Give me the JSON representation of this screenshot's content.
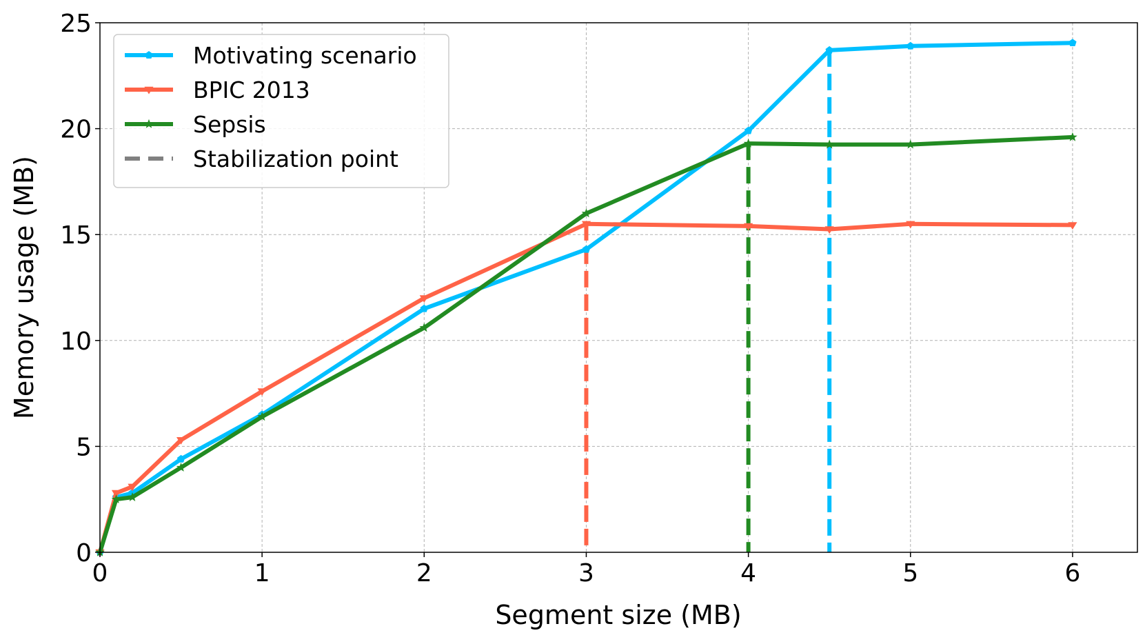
{
  "chart_data": {
    "type": "line",
    "xlabel": "Segment size (MB)",
    "ylabel": "Memory usage (MB)",
    "xlim": [
      0,
      6.4
    ],
    "ylim": [
      0,
      25
    ],
    "xticks": [
      0,
      1,
      2,
      3,
      4,
      5,
      6
    ],
    "yticks": [
      0,
      5,
      10,
      15,
      20,
      25
    ],
    "grid": true,
    "legend_position": "top-left",
    "series": [
      {
        "name": "Motivating scenario",
        "color": "#00bfff",
        "marker": "pentagon",
        "x": [
          0,
          0.1,
          0.2,
          0.5,
          1,
          2,
          3,
          4,
          4.5,
          5,
          6
        ],
        "y": [
          0,
          2.6,
          2.8,
          4.4,
          6.5,
          11.5,
          14.3,
          19.9,
          23.7,
          23.9,
          24.05
        ]
      },
      {
        "name": "BPIC 2013",
        "color": "#ff6347",
        "marker": "triangle-down",
        "x": [
          0,
          0.1,
          0.2,
          0.5,
          1,
          2,
          3,
          4,
          4.5,
          5,
          6
        ],
        "y": [
          0,
          2.8,
          3.1,
          5.3,
          7.6,
          12.0,
          15.5,
          15.4,
          15.25,
          15.5,
          15.45
        ]
      },
      {
        "name": "Sepsis",
        "color": "#228b22",
        "marker": "star",
        "x": [
          0,
          0.1,
          0.2,
          0.5,
          1,
          2,
          3,
          4,
          4.5,
          5,
          6
        ],
        "y": [
          0,
          2.5,
          2.6,
          4.0,
          6.4,
          10.6,
          16.0,
          19.3,
          19.25,
          19.25,
          19.6
        ]
      }
    ],
    "stabilization_points": [
      {
        "series": "BPIC 2013",
        "x": 3,
        "y": 15.5,
        "color": "#ff6347"
      },
      {
        "series": "Sepsis",
        "x": 4,
        "y": 19.3,
        "color": "#228b22"
      },
      {
        "series": "Motivating scenario",
        "x": 4.5,
        "y": 23.7,
        "color": "#00bfff"
      }
    ],
    "legend": [
      {
        "label": "Motivating scenario",
        "color": "#00bfff",
        "style": "solid"
      },
      {
        "label": "BPIC 2013",
        "color": "#ff6347",
        "style": "solid"
      },
      {
        "label": "Sepsis",
        "color": "#228b22",
        "style": "solid"
      },
      {
        "label": "Stabilization point",
        "color": "#808080",
        "style": "dashed"
      }
    ]
  }
}
